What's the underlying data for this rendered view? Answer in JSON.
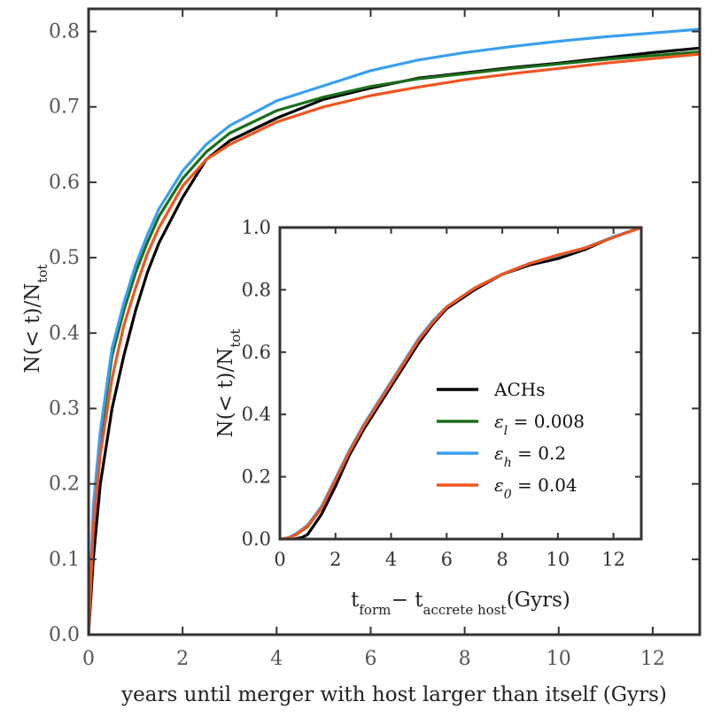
{
  "chart_data": [
    {
      "type": "line",
      "name": "main",
      "xlabel": "years until merger with host larger than itself (Gyrs)",
      "ylabel": "N(< t)/N",
      "ylabel_sub": "tot",
      "xlim": [
        0,
        13
      ],
      "ylim": [
        0,
        0.83
      ],
      "xticks": [
        0,
        2,
        4,
        6,
        8,
        10,
        12
      ],
      "xtick_labels": [
        "0",
        "2",
        "4",
        "6",
        "8",
        "10",
        "12"
      ],
      "yticks": [
        0,
        0.1,
        0.2,
        0.3,
        0.4,
        0.5,
        0.6,
        0.7,
        0.8
      ],
      "ytick_labels": [
        "0.0",
        "0.1",
        "0.2",
        "0.3",
        "0.4",
        "0.5",
        "0.6",
        "0.7",
        "0.8"
      ],
      "series": [
        {
          "name": "ACHs",
          "color": "#000000",
          "x": [
            0,
            0.1,
            0.25,
            0.5,
            0.75,
            1,
            1.25,
            1.5,
            2,
            2.5,
            3,
            4,
            5,
            6,
            7,
            8,
            9,
            10,
            11,
            12,
            13
          ],
          "y": [
            0,
            0.1,
            0.2,
            0.3,
            0.37,
            0.43,
            0.48,
            0.52,
            0.58,
            0.63,
            0.655,
            0.685,
            0.71,
            0.725,
            0.738,
            0.745,
            0.752,
            0.758,
            0.765,
            0.772,
            0.778
          ]
        },
        {
          "name": "ε_l = 0.008",
          "color": "#1a6e1a",
          "x": [
            0,
            0.1,
            0.25,
            0.5,
            0.75,
            1,
            1.25,
            1.5,
            2,
            2.5,
            3,
            4,
            5,
            6,
            7,
            8,
            9,
            10,
            11,
            12,
            13
          ],
          "y": [
            0,
            0.16,
            0.26,
            0.37,
            0.43,
            0.48,
            0.52,
            0.555,
            0.605,
            0.64,
            0.665,
            0.695,
            0.713,
            0.727,
            0.737,
            0.744,
            0.751,
            0.757,
            0.763,
            0.768,
            0.773
          ]
        },
        {
          "name": "ε_h = 0.2",
          "color": "#3a9ff0",
          "x": [
            0,
            0.1,
            0.25,
            0.5,
            0.75,
            1,
            1.25,
            1.5,
            2,
            2.5,
            3,
            4,
            5,
            6,
            7,
            8,
            9,
            10,
            11,
            12,
            13
          ],
          "y": [
            0,
            0.17,
            0.27,
            0.38,
            0.44,
            0.49,
            0.53,
            0.565,
            0.615,
            0.65,
            0.675,
            0.708,
            0.728,
            0.748,
            0.762,
            0.772,
            0.78,
            0.787,
            0.793,
            0.798,
            0.803
          ]
        },
        {
          "name": "ε_0 = 0.04",
          "color": "#f05520",
          "x": [
            0,
            0.1,
            0.25,
            0.5,
            0.75,
            1,
            1.25,
            1.5,
            2,
            2.5,
            3,
            4,
            5,
            6,
            7,
            8,
            9,
            10,
            11,
            12,
            13
          ],
          "y": [
            0,
            0.14,
            0.24,
            0.34,
            0.41,
            0.46,
            0.505,
            0.54,
            0.595,
            0.63,
            0.65,
            0.68,
            0.7,
            0.715,
            0.726,
            0.736,
            0.744,
            0.751,
            0.758,
            0.764,
            0.77
          ]
        }
      ]
    },
    {
      "type": "line",
      "name": "inset",
      "xlabel_parts": [
        "t",
        "form",
        " − t",
        "accrete host",
        " (Gyrs)"
      ],
      "ylabel": "N(< t)/N",
      "ylabel_sub": "tot",
      "xlim": [
        0,
        13
      ],
      "ylim": [
        0,
        1.0
      ],
      "xticks": [
        0,
        2,
        4,
        6,
        8,
        10,
        12
      ],
      "xtick_labels": [
        "0",
        "2",
        "4",
        "6",
        "8",
        "10",
        "12"
      ],
      "yticks": [
        0,
        0.2,
        0.4,
        0.6,
        0.8,
        1.0
      ],
      "ytick_labels": [
        "0.0",
        "0.2",
        "0.4",
        "0.6",
        "0.8",
        "1.0"
      ],
      "legend": {
        "placement": "lower-right"
      },
      "series": [
        {
          "name": "ACHs",
          "color": "#000000",
          "x": [
            0,
            0.5,
            0.8,
            1,
            1.5,
            2,
            2.5,
            3,
            3.5,
            4,
            4.5,
            5,
            5.5,
            6,
            7,
            8,
            9,
            10,
            11,
            12,
            13
          ],
          "y": [
            0,
            0,
            0.005,
            0.015,
            0.08,
            0.17,
            0.27,
            0.35,
            0.42,
            0.49,
            0.56,
            0.63,
            0.69,
            0.74,
            0.8,
            0.85,
            0.88,
            0.9,
            0.93,
            0.97,
            1.0
          ]
        },
        {
          "name": "ε_l = 0.008",
          "color": "#1a6e1a",
          "x": [
            0,
            0.3,
            0.6,
            1,
            1.5,
            2,
            2.5,
            3,
            3.5,
            4,
            4.5,
            5,
            5.5,
            6,
            7,
            8,
            9,
            10,
            11,
            12,
            13
          ],
          "y": [
            0,
            0.003,
            0.015,
            0.04,
            0.1,
            0.19,
            0.28,
            0.36,
            0.43,
            0.5,
            0.57,
            0.64,
            0.7,
            0.745,
            0.805,
            0.85,
            0.885,
            0.91,
            0.935,
            0.97,
            1.0
          ]
        },
        {
          "name": "ε_h = 0.2",
          "color": "#3a9ff0",
          "x": [
            0,
            0.3,
            0.6,
            1,
            1.5,
            2,
            2.5,
            3,
            3.5,
            4,
            4.5,
            5,
            5.5,
            6,
            7,
            8,
            9,
            10,
            11,
            12,
            13
          ],
          "y": [
            0,
            0.004,
            0.018,
            0.045,
            0.105,
            0.195,
            0.285,
            0.365,
            0.435,
            0.505,
            0.575,
            0.645,
            0.7,
            0.745,
            0.805,
            0.85,
            0.885,
            0.91,
            0.935,
            0.97,
            1.0
          ]
        },
        {
          "name": "ε_0 = 0.04",
          "color": "#f05520",
          "x": [
            0,
            0.3,
            0.6,
            1,
            1.5,
            2,
            2.5,
            3,
            3.5,
            4,
            4.5,
            5,
            5.5,
            6,
            7,
            8,
            9,
            10,
            11,
            12,
            13
          ],
          "y": [
            0,
            0.003,
            0.016,
            0.042,
            0.1,
            0.19,
            0.28,
            0.36,
            0.43,
            0.5,
            0.57,
            0.64,
            0.695,
            0.745,
            0.805,
            0.85,
            0.885,
            0.912,
            0.935,
            0.968,
            1.0
          ]
        }
      ]
    }
  ],
  "legend_entries": [
    {
      "symbol": "",
      "sub": "",
      "value": "ACHs"
    },
    {
      "symbol": "ε",
      "sub": "l",
      "value": " =  0.008"
    },
    {
      "symbol": "ε",
      "sub": "h",
      "value": " =  0.2"
    },
    {
      "symbol": "ε",
      "sub": "0",
      "value": " =  0.04"
    }
  ]
}
